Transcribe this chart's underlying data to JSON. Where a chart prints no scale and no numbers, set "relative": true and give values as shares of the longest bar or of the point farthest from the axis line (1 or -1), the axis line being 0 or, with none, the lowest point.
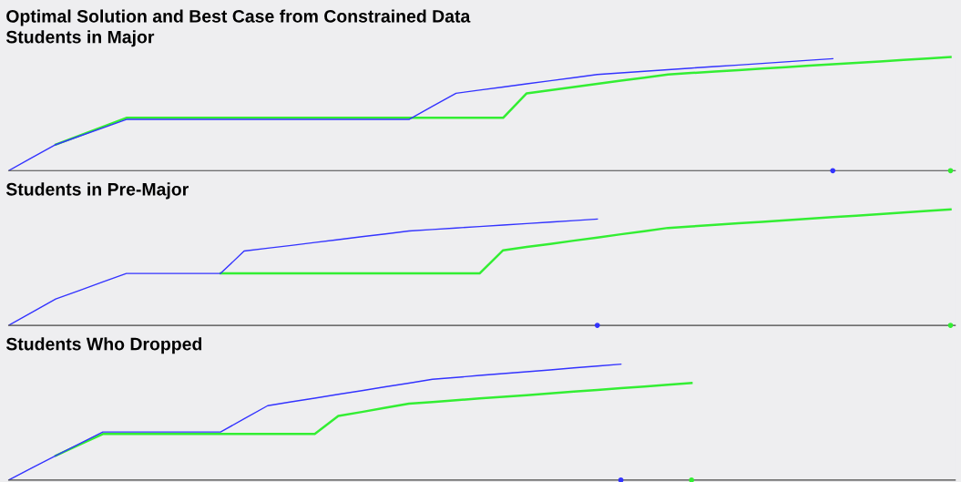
{
  "chart_data": [
    {
      "type": "line",
      "title": "Optimal Solution and Best Case from Constrained Data",
      "subtitle": "Students in Major",
      "relative": true,
      "categories": [
        null,
        null,
        null,
        null,
        null,
        null,
        null,
        null,
        null,
        null,
        null,
        null,
        null,
        null,
        null,
        null,
        null,
        null,
        null,
        null,
        null,
        null,
        null,
        null,
        null,
        null,
        null,
        null,
        null,
        null,
        null,
        null,
        null,
        null,
        null,
        null,
        null,
        null,
        null,
        null,
        null
      ],
      "series": [
        {
          "color": "#3333ff",
          "values": [
            0,
            0.115,
            0.229,
            0.303,
            0.377,
            0.451,
            0.451,
            0.451,
            0.451,
            0.451,
            0.451,
            0.451,
            0.451,
            0.451,
            0.451,
            0.451,
            0.451,
            0.451,
            0.566,
            0.681,
            0.709,
            0.736,
            0.764,
            0.792,
            0.819,
            0.847,
            0.861,
            0.875,
            0.889,
            0.903,
            0.917,
            0.93,
            0.944,
            0.958,
            0.972,
            0.986,
            null,
            null,
            null,
            null,
            null
          ]
        },
        {
          "color": "#33ee33",
          "values": [
            null,
            null,
            0.229,
            0.308,
            0.386,
            0.465,
            0.465,
            0.465,
            0.465,
            0.465,
            0.465,
            0.465,
            0.465,
            0.465,
            0.465,
            0.465,
            0.465,
            0.465,
            0.465,
            0.465,
            0.465,
            0.465,
            0.681,
            0.709,
            0.736,
            0.764,
            0.792,
            0.819,
            0.847,
            0.86,
            0.873,
            0.885,
            0.898,
            0.911,
            0.924,
            0.936,
            0.949,
            0.962,
            0.975,
            0.987,
            1
          ]
        }
      ]
    },
    {
      "type": "line",
      "title": "Students in Pre-Major",
      "relative": true,
      "categories": [
        null,
        null,
        null,
        null,
        null,
        null,
        null,
        null,
        null,
        null,
        null,
        null,
        null,
        null,
        null,
        null,
        null,
        null,
        null,
        null,
        null,
        null,
        null,
        null,
        null,
        null,
        null,
        null,
        null,
        null,
        null,
        null,
        null,
        null,
        null,
        null,
        null,
        null,
        null,
        null,
        null
      ],
      "series": [
        {
          "color": "#3333ff",
          "values": [
            0,
            0.114,
            0.228,
            0.301,
            0.375,
            0.448,
            0.448,
            0.448,
            0.448,
            0.448,
            0.641,
            0.666,
            0.69,
            0.715,
            0.74,
            0.765,
            0.789,
            0.814,
            0.827,
            0.84,
            0.853,
            0.866,
            0.878,
            0.891,
            0.904,
            0.917,
            null,
            null,
            null,
            null,
            null,
            null,
            null,
            null,
            null,
            null,
            null,
            null,
            null,
            null,
            null
          ]
        },
        {
          "color": "#33ee33",
          "values": [
            null,
            null,
            null,
            null,
            null,
            null,
            null,
            null,
            null,
            0.448,
            0.448,
            0.448,
            0.448,
            0.448,
            0.448,
            0.448,
            0.448,
            0.448,
            0.448,
            0.448,
            0.448,
            0.648,
            0.676,
            0.703,
            0.731,
            0.758,
            0.786,
            0.813,
            0.841,
            0.854,
            0.867,
            0.881,
            0.894,
            0.907,
            0.92,
            0.934,
            0.947,
            0.96,
            0.973,
            0.987,
            1
          ]
        }
      ]
    },
    {
      "type": "line",
      "title": "Students Who Dropped",
      "relative": true,
      "categories": [
        null,
        null,
        null,
        null,
        null,
        null,
        null,
        null,
        null,
        null,
        null,
        null,
        null,
        null,
        null,
        null,
        null,
        null,
        null,
        null,
        null,
        null,
        null,
        null,
        null,
        null,
        null,
        null,
        null,
        null,
        null,
        null,
        null,
        null,
        null,
        null,
        null,
        null,
        null,
        null,
        null
      ],
      "series": [
        {
          "color": "#3333ff",
          "values": [
            0,
            0.106,
            0.211,
            0.313,
            0.415,
            0.415,
            0.415,
            0.415,
            0.415,
            0.415,
            0.529,
            0.642,
            0.675,
            0.707,
            0.74,
            0.772,
            0.805,
            0.837,
            0.87,
            0.886,
            0.903,
            0.919,
            0.935,
            0.951,
            0.968,
            0.984,
            1,
            null,
            null,
            null,
            null,
            null,
            null,
            null,
            null,
            null,
            null,
            null,
            null,
            null,
            null
          ]
        },
        {
          "color": "#33ee33",
          "values": [
            null,
            null,
            0.211,
            0.305,
            0.398,
            0.398,
            0.398,
            0.398,
            0.398,
            0.398,
            0.398,
            0.398,
            0.398,
            0.398,
            0.553,
            0.588,
            0.624,
            0.659,
            0.674,
            0.689,
            0.704,
            0.718,
            0.733,
            0.748,
            0.763,
            0.778,
            0.793,
            0.807,
            0.822,
            0.837,
            null,
            null,
            null,
            null,
            null,
            null,
            null,
            null,
            null,
            null,
            null
          ]
        }
      ]
    }
  ]
}
